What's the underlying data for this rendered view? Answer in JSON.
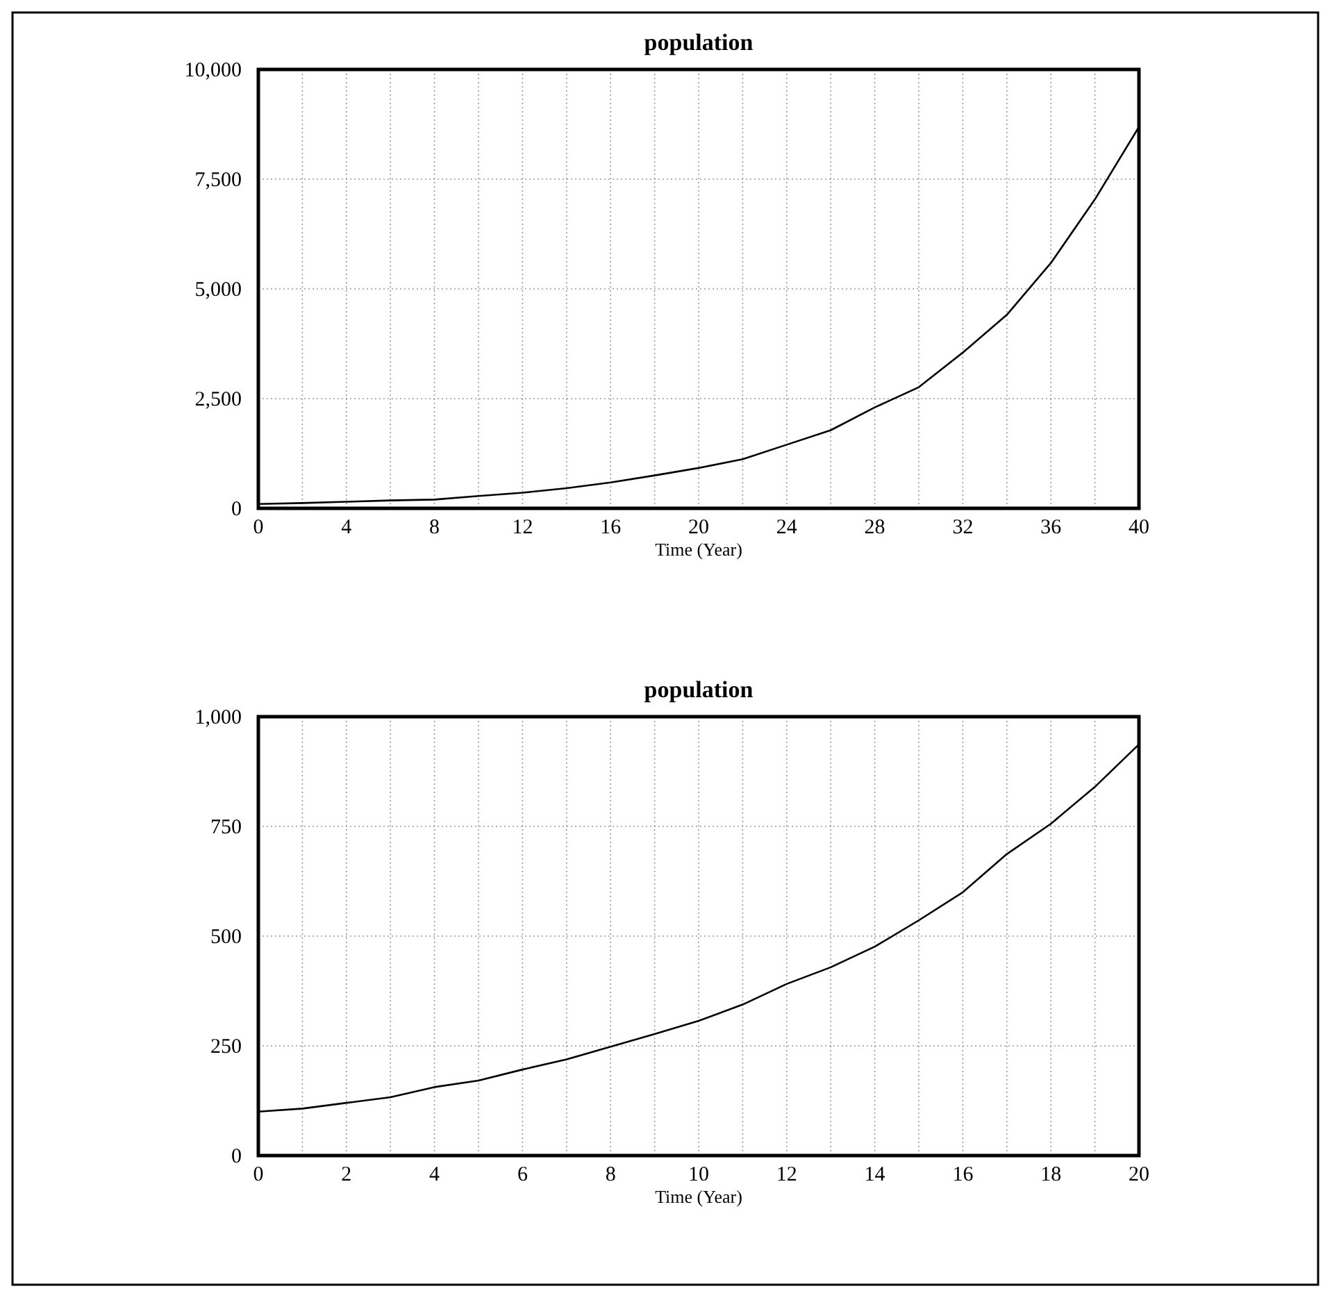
{
  "chart_data": [
    {
      "type": "line",
      "title": "population",
      "xlabel": "Time (Year)",
      "x": [
        0,
        2,
        4,
        6,
        8,
        10,
        12,
        14,
        16,
        18,
        20,
        22,
        24,
        26,
        28,
        30,
        32,
        34,
        36,
        38,
        40
      ],
      "series": [
        {
          "color": "#000000",
          "values": [
            100,
            120,
            150,
            180,
            200,
            280,
            355,
            460,
            590,
            750,
            920,
            1120,
            1450,
            1780,
            2300,
            2760,
            3550,
            4410,
            5590,
            7040,
            8690
          ]
        }
      ],
      "xlim": [
        0,
        40
      ],
      "xticks": [
        0,
        {
          "value": 2,
          "label": null
        },
        4,
        {
          "value": 6,
          "label": null
        },
        8,
        {
          "value": 10,
          "label": null
        },
        12,
        {
          "value": 14,
          "label": null
        },
        16,
        {
          "value": 18,
          "label": null
        },
        20,
        {
          "value": 22,
          "label": null
        },
        24,
        {
          "value": 26,
          "label": null
        },
        28,
        {
          "value": 30,
          "label": null
        },
        32,
        {
          "value": 34,
          "label": null
        },
        36,
        {
          "value": 38,
          "label": null
        },
        40
      ],
      "ylim": [
        0,
        10000
      ],
      "yticks": [
        {
          "value": 0,
          "label": "0"
        },
        {
          "value": 2500,
          "label": "2,500"
        },
        {
          "value": 5000,
          "label": "5,000"
        },
        {
          "value": 7500,
          "label": "7,500"
        },
        {
          "value": 10000,
          "label": "10,000"
        }
      ],
      "grid": true,
      "marker": "none",
      "line_style": "solid"
    },
    {
      "type": "line",
      "title": "population",
      "xlabel": "Time (Year)",
      "x": [
        0,
        1,
        2,
        3,
        4,
        5,
        6,
        7,
        8,
        9,
        10,
        11,
        12,
        13,
        14,
        15,
        16,
        17,
        18,
        19,
        20
      ],
      "series": [
        {
          "color": "#000000",
          "values": [
            100,
            107,
            120,
            133,
            156,
            171,
            196,
            219,
            248,
            277,
            307,
            344,
            391,
            429,
            476,
            536,
            600,
            687,
            756,
            840,
            937
          ]
        }
      ],
      "xlim": [
        0,
        20
      ],
      "xticks": [
        0,
        {
          "value": 1,
          "label": null
        },
        2,
        {
          "value": 3,
          "label": null
        },
        4,
        {
          "value": 5,
          "label": null
        },
        6,
        {
          "value": 7,
          "label": null
        },
        8,
        {
          "value": 9,
          "label": null
        },
        10,
        {
          "value": 11,
          "label": null
        },
        12,
        {
          "value": 13,
          "label": null
        },
        14,
        {
          "value": 15,
          "label": null
        },
        16,
        {
          "value": 17,
          "label": null
        },
        18,
        {
          "value": 19,
          "label": null
        },
        20
      ],
      "ylim": [
        0,
        1000
      ],
      "yticks": [
        {
          "value": 0,
          "label": "0"
        },
        {
          "value": 250,
          "label": "250"
        },
        {
          "value": 500,
          "label": "500"
        },
        {
          "value": 750,
          "label": "750"
        },
        {
          "value": 1000,
          "label": "1,000"
        }
      ],
      "grid": true,
      "marker": "none",
      "line_style": "solid"
    }
  ]
}
